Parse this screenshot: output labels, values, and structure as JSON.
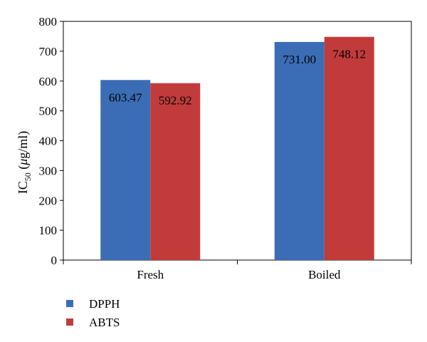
{
  "chart_data": {
    "type": "bar",
    "categories": [
      "Fresh",
      "Boiled"
    ],
    "series": [
      {
        "name": "DPPH",
        "values": [
          603.47,
          731.0
        ],
        "labels": [
          "603.47",
          "731.00"
        ],
        "color": "#3a6db5"
      },
      {
        "name": "ABTS",
        "values": [
          592.92,
          748.12
        ],
        "labels": [
          "592.92",
          "748.12"
        ],
        "color": "#c23b3b"
      }
    ],
    "ylabel": {
      "main": "IC",
      "sub": "50",
      "unit_open": " (",
      "mu": "μ",
      "unit_rest": "g/ml)"
    },
    "ylim": [
      0,
      800
    ],
    "yticks": [
      "0",
      "100",
      "200",
      "300",
      "400",
      "500",
      "600",
      "700",
      "800"
    ],
    "ytick_values": [
      0,
      100,
      200,
      300,
      400,
      500,
      600,
      700,
      800
    ],
    "grid": false,
    "legend_position": "bottom-left"
  }
}
